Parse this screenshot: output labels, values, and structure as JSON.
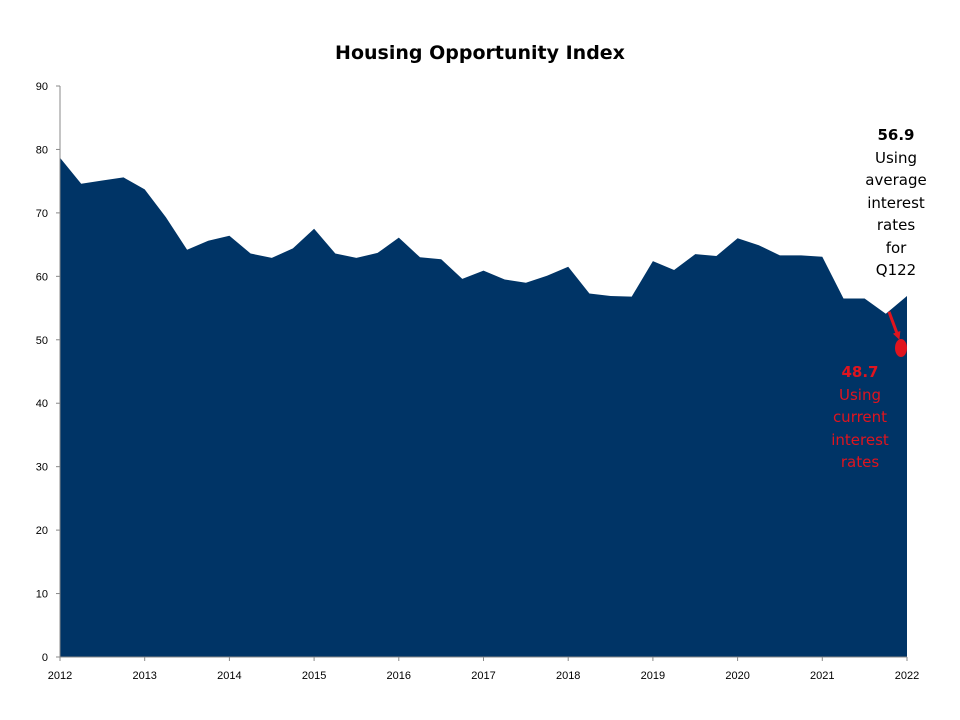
{
  "chart_data": {
    "type": "area",
    "title": "Housing Opportunity Index",
    "xlabel": "",
    "ylabel": "",
    "ylim": [
      0,
      90
    ],
    "yticks": [
      0,
      10,
      20,
      30,
      40,
      50,
      60,
      70,
      80,
      90
    ],
    "xlim": [
      2012,
      2022
    ],
    "xticks": [
      "2012",
      "2013",
      "2014",
      "2015",
      "2016",
      "2017",
      "2018",
      "2019",
      "2020",
      "2021",
      "2022"
    ],
    "grid": false,
    "fill_color": "#003466",
    "series": [
      {
        "x": [
          "2012 Q1",
          "2012 Q2",
          "2012 Q3",
          "2012 Q4",
          "2013 Q1",
          "2013 Q2",
          "2013 Q3",
          "2013 Q4",
          "2014 Q1",
          "2014 Q2",
          "2014 Q3",
          "2014 Q4",
          "2015 Q1",
          "2015 Q2",
          "2015 Q3",
          "2015 Q4",
          "2016 Q1",
          "2016 Q2",
          "2016 Q3",
          "2016 Q4",
          "2017 Q1",
          "2017 Q2",
          "2017 Q3",
          "2017 Q4",
          "2018 Q1",
          "2018 Q2",
          "2018 Q3",
          "2018 Q4",
          "2019 Q1",
          "2019 Q2",
          "2019 Q3",
          "2019 Q4",
          "2020 Q1",
          "2020 Q2",
          "2020 Q3",
          "2020 Q4",
          "2021 Q1",
          "2021 Q2",
          "2021 Q3",
          "2021 Q4",
          "2022 Q1"
        ],
        "values": [
          78.7,
          74.6,
          75.1,
          75.6,
          73.7,
          69.3,
          64.2,
          65.6,
          66.4,
          63.6,
          62.9,
          64.4,
          67.5,
          63.6,
          62.9,
          63.7,
          66.1,
          63.0,
          62.7,
          59.6,
          60.9,
          59.5,
          59.0,
          60.1,
          61.5,
          57.3,
          56.9,
          56.8,
          62.4,
          61.0,
          63.5,
          63.2,
          66.0,
          64.9,
          63.3,
          63.3,
          63.1,
          56.5,
          56.5,
          54.1,
          56.9
        ]
      }
    ],
    "annotations": [
      {
        "value": "56.9",
        "lines": [
          "Using",
          "average",
          "interest",
          "rates",
          "for",
          "Q122"
        ],
        "color": "#000000"
      },
      {
        "value": "48.7",
        "lines": [
          "Using",
          "current",
          "interest",
          "rates"
        ],
        "color": "#e0141e",
        "marker_y": 48.7
      }
    ],
    "arrow_color": "#e0141e"
  }
}
